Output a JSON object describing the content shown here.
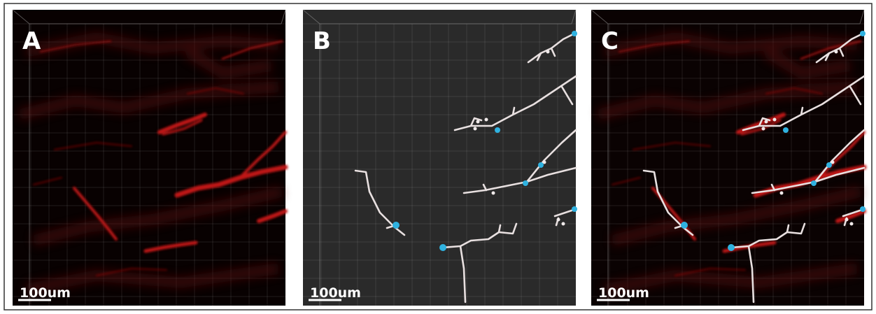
{
  "panels": [
    {
      "label": "A",
      "scale_bar": "100um"
    },
    {
      "label": "B",
      "scale_bar": "100um"
    },
    {
      "label": "C",
      "scale_bar": "100um"
    }
  ]
}
